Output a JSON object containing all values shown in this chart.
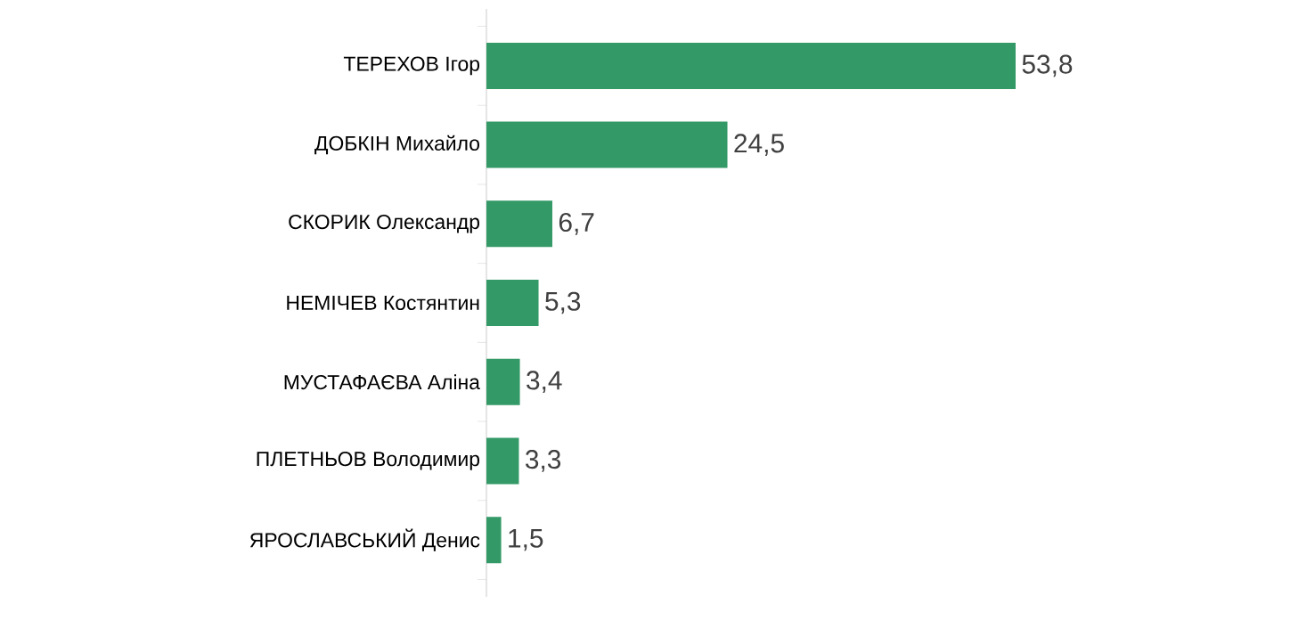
{
  "chart_data": {
    "type": "bar",
    "orientation": "horizontal",
    "categories": [
      "ТЕРЕХОВ Ігор",
      "ДОБКІН Михайло",
      "СКОРИК Олександр",
      "НЕМІЧЕВ Костянтин",
      "МУСТАФАЄВА Аліна",
      "ПЛЕТНЬОВ Володимир",
      "ЯРОСЛАВСЬКИЙ Денис"
    ],
    "values": [
      53.8,
      24.5,
      6.7,
      5.3,
      3.4,
      3.3,
      1.5
    ],
    "value_labels": [
      "53,8",
      "24,5",
      "6,7",
      "5,3",
      "3,4",
      "3,3",
      "1,5"
    ],
    "color": "#339966"
  }
}
